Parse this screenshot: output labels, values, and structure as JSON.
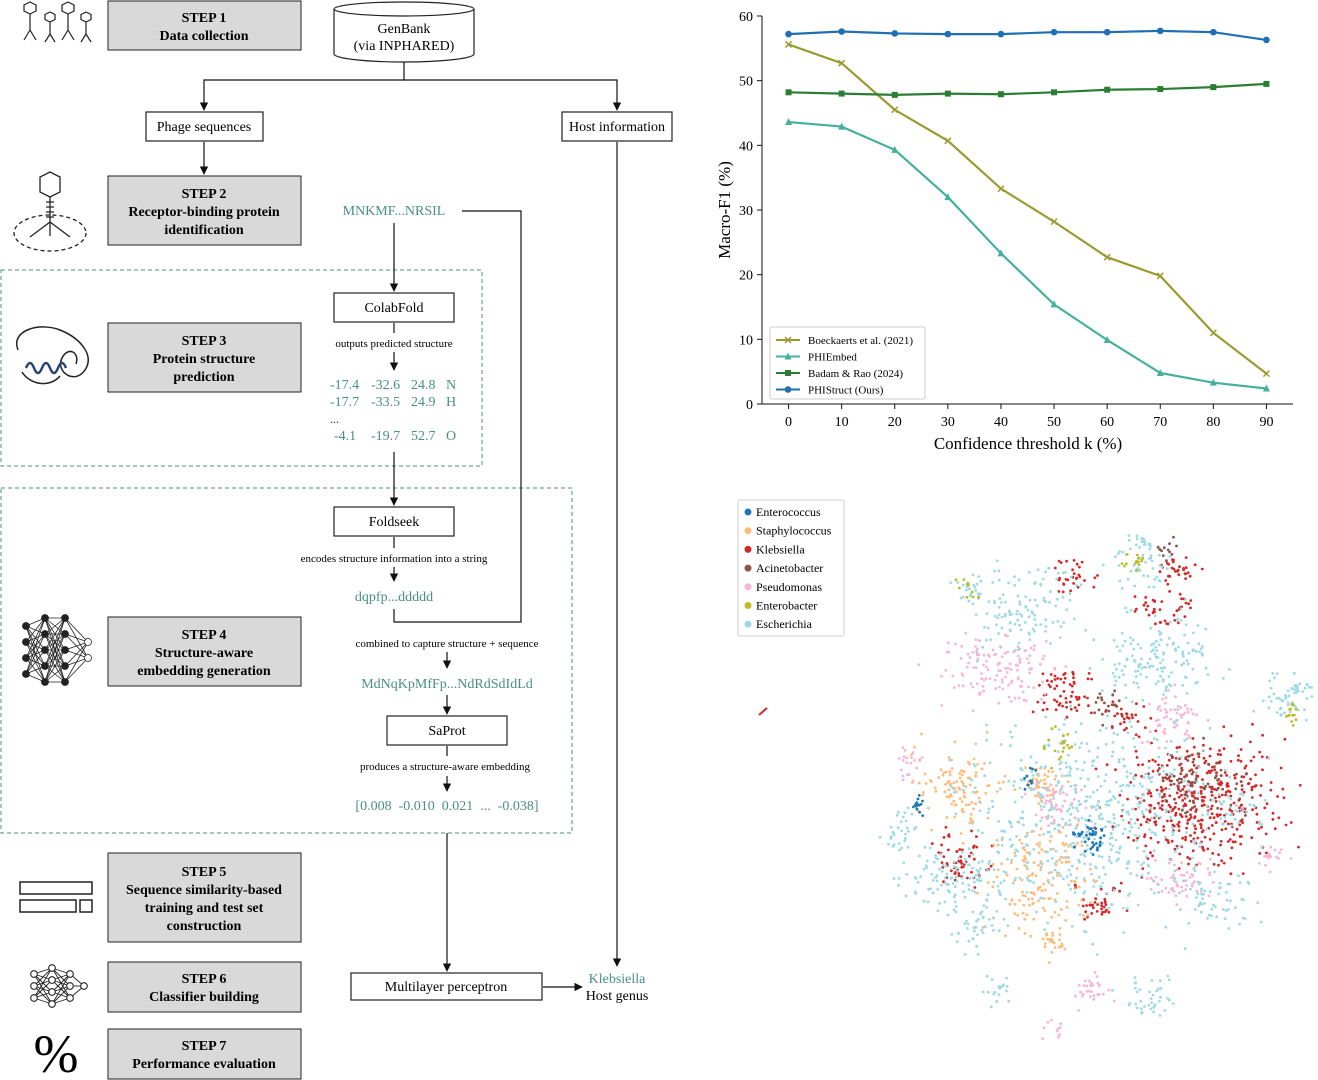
{
  "pipeline": {
    "steps": [
      {
        "num": "STEP 1",
        "lines": [
          "Data collection"
        ],
        "icon": "phages-icon"
      },
      {
        "num": "STEP 2",
        "lines": [
          "Receptor-binding protein",
          "identification"
        ],
        "icon": "phage-icon"
      },
      {
        "num": "STEP 3",
        "lines": [
          "Protein structure",
          "prediction"
        ],
        "icon": "protein-structure-icon"
      },
      {
        "num": "STEP 4",
        "lines": [
          "Structure-aware",
          "embedding generation"
        ],
        "icon": "neural-network-icon"
      },
      {
        "num": "STEP 5",
        "lines": [
          "Sequence similarity-based",
          "training and test set",
          "construction"
        ],
        "icon": "dataset-split-icon"
      },
      {
        "num": "STEP 6",
        "lines": [
          "Classifier building"
        ],
        "icon": "classifier-network-icon"
      },
      {
        "num": "STEP 7",
        "lines": [
          "Performance evaluation"
        ],
        "icon": "percent-icon"
      }
    ],
    "genbank": [
      "GenBank",
      "(via INPHARED)"
    ],
    "phage_sequences": "Phage sequences",
    "host_information": "Host information",
    "sequence": "MNKMF...NRSIL",
    "colabfold": "ColabFold",
    "colabfold_note": "outputs predicted structure",
    "coords": [
      [
        "-17.4",
        "-32.6",
        "24.8",
        "N"
      ],
      [
        "-17.7",
        "-33.5",
        "24.9",
        "H"
      ],
      [
        "...",
        "",
        "",
        ""
      ],
      [
        "-4.1",
        "-19.7",
        "52.7",
        "O"
      ]
    ],
    "foldseek": "Foldseek",
    "foldseek_note": "encodes structure information into a string",
    "structure_string": "dqpfp...ddddd",
    "combine_note": "combined to capture structure + sequence",
    "combined_string": "MdNqKpMfFp...NdRdSdIdLd",
    "saprot": "SaProt",
    "saprot_note": "produces a structure-aware embedding",
    "embedding": "[0.008  -0.010  0.021  ...  -0.038]",
    "mlp": "Multilayer perceptron",
    "prediction": "Klebsiella",
    "prediction_label": "Host genus"
  },
  "colors": {
    "accent_text": "#4a9080",
    "step_box": "#d9d9d9"
  },
  "chart_data": [
    {
      "type": "line",
      "title": "",
      "xlabel": "Confidence threshold k (%)",
      "ylabel": "Macro-F1 (%)",
      "x": [
        0,
        10,
        20,
        30,
        40,
        50,
        60,
        70,
        80,
        90
      ],
      "xlim": [
        -5,
        95
      ],
      "ylim": [
        0,
        60
      ],
      "yticks": [
        0,
        10,
        20,
        30,
        40,
        50,
        60
      ],
      "legend_position": "lower-left",
      "grid": false,
      "series": [
        {
          "name": "Boeckaerts et al. (2021)",
          "color": "#9b9a2f",
          "marker": "x",
          "values": [
            55.6,
            52.7,
            45.5,
            40.7,
            33.3,
            28.2,
            22.7,
            19.8,
            11.0,
            4.7
          ]
        },
        {
          "name": "PHIEmbed",
          "color": "#44b09e",
          "marker": "triangle",
          "values": [
            43.6,
            42.9,
            39.3,
            32.0,
            23.3,
            15.4,
            9.9,
            4.8,
            3.3,
            2.4
          ]
        },
        {
          "name": "Badam & Rao (2024)",
          "color": "#2a7e33",
          "marker": "square",
          "values": [
            48.2,
            48.0,
            47.8,
            48.0,
            47.9,
            48.2,
            48.6,
            48.7,
            49.0,
            49.5
          ]
        },
        {
          "name": "PHIStruct (Ours)",
          "color": "#1f6fb2",
          "marker": "circle",
          "values": [
            57.2,
            57.6,
            57.3,
            57.2,
            57.2,
            57.5,
            57.5,
            57.7,
            57.5,
            56.3
          ]
        }
      ]
    },
    {
      "type": "scatter",
      "title": "",
      "legend_position": "top-left",
      "axes": "none",
      "series": [
        {
          "name": "Enterococcus",
          "color": "#1f77b4"
        },
        {
          "name": "Staphylococcus",
          "color": "#ffbb78"
        },
        {
          "name": "Klebsiella",
          "color": "#d62728"
        },
        {
          "name": "Acinetobacter",
          "color": "#8c564b"
        },
        {
          "name": "Pseudomonas",
          "color": "#f7b6d2"
        },
        {
          "name": "Enterobacter",
          "color": "#bcbd22"
        },
        {
          "name": "Escherichia",
          "color": "#9edae5"
        }
      ]
    }
  ]
}
